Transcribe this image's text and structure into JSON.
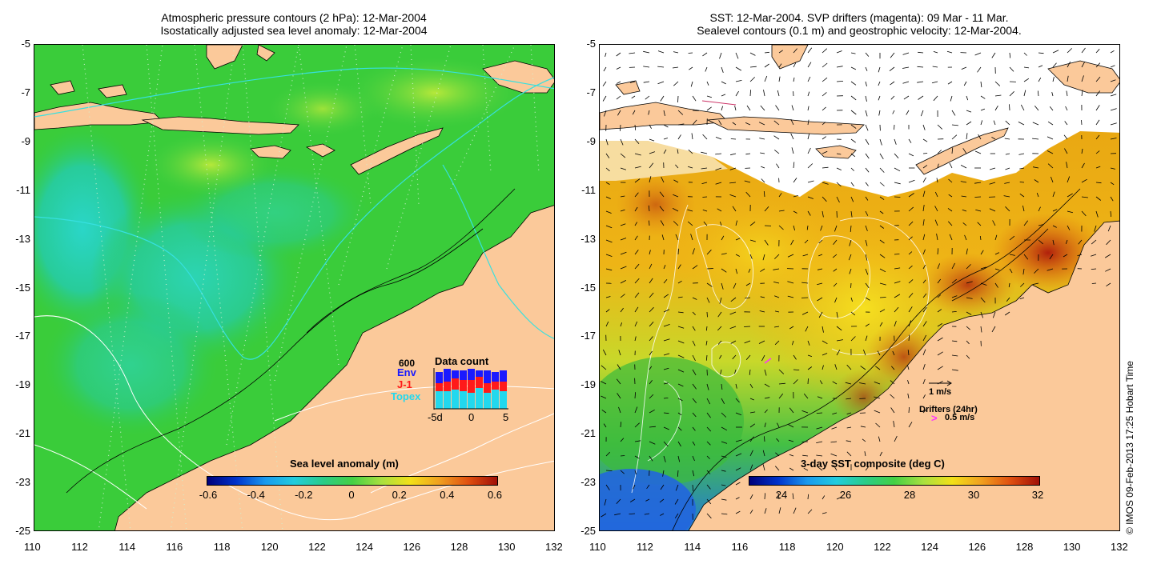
{
  "left_panel": {
    "title_line1": "Atmospheric pressure contours (2 hPa): 12-Mar-2004",
    "title_line2": "Isostatically adjusted sea level anomaly: 12-Mar-2004",
    "colorbar_label": "Sea level anomaly (m)",
    "colorbar_ticks": [
      "-0.6",
      "-0.4",
      "-0.2",
      "0",
      "0.2",
      "0.4",
      "0.6"
    ],
    "inset": {
      "title": "Data count",
      "y_max_label": "600",
      "series": [
        "Env",
        "J-1",
        "Topex"
      ],
      "series_colors": [
        "#1a1aff",
        "#ff1a1a",
        "#22d8ee"
      ],
      "x_ticks": [
        "-5d",
        "0",
        "5"
      ]
    }
  },
  "right_panel": {
    "title_line1": "SST: 12-Mar-2004. SVP drifters (magenta): 09 Mar - 11 Mar.",
    "title_line2": "Sealevel contours (0.1 m) and geostrophic velocity: 12-Mar-2004.",
    "colorbar_label": "3-day SST composite (deg C)",
    "colorbar_ticks": [
      "24",
      "26",
      "28",
      "30",
      "32"
    ],
    "velocity_scale_label": "1 m/s",
    "drifters_label": "Drifters (24hr)",
    "drifters_scale_label": "0.5 m/s"
  },
  "axes": {
    "lat_ticks": [
      "-5",
      "-7",
      "-9",
      "-11",
      "-13",
      "-15",
      "-17",
      "-19",
      "-21",
      "-23",
      "-25"
    ],
    "lon_ticks": [
      "110",
      "112",
      "114",
      "116",
      "118",
      "120",
      "122",
      "124",
      "126",
      "128",
      "130",
      "132"
    ]
  },
  "copyright": "© IMOS 09-Feb-2013 17:25 Hobart Time",
  "colors": {
    "land": "#fbc99a",
    "ocean_sla": "#33cc33",
    "sst_warm": "#e8960e",
    "sst_hot": "#b0200c"
  }
}
